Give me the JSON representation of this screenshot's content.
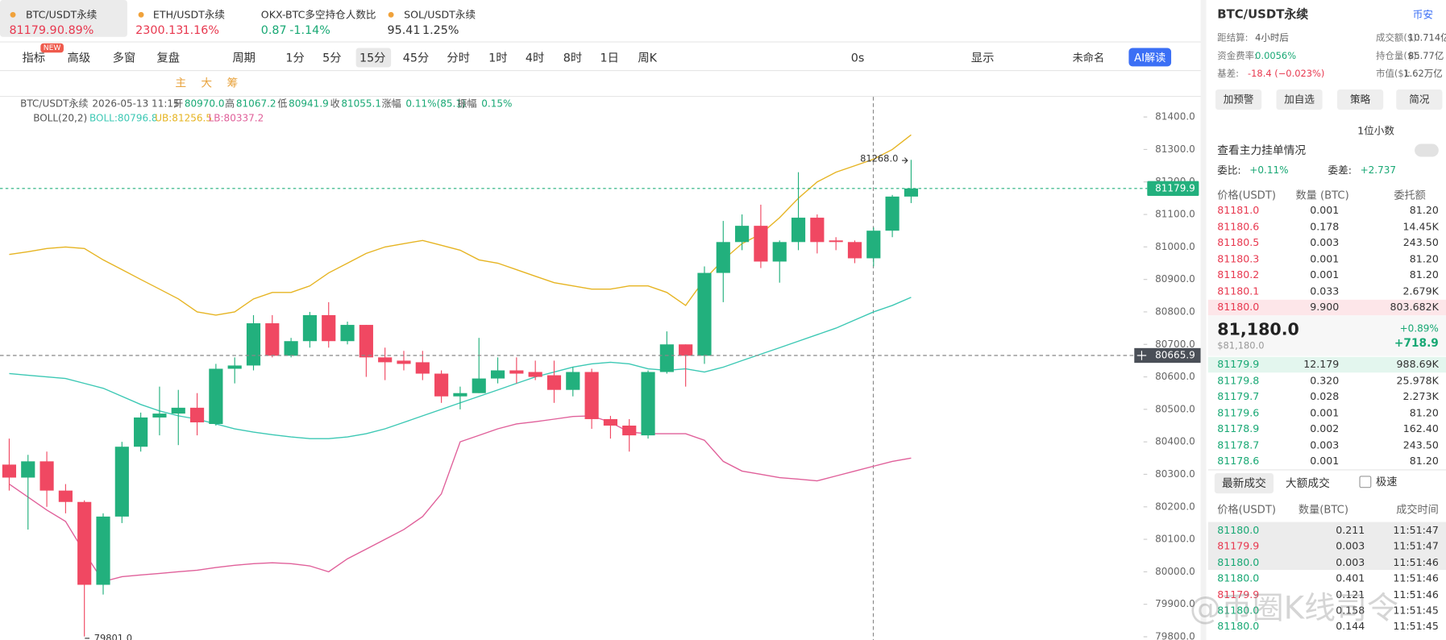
{
  "tabs": [
    {
      "name": "BTC/USDT永续",
      "price": "81179.9",
      "change": "0.89%",
      "color": "#e8384f"
    },
    {
      "name": "ETH/USDT永续",
      "price": "2300.13",
      "change": "1.16%",
      "color": "#e8384f"
    },
    {
      "name": "OKX-BTC多空持仓人数比",
      "price": "0.87",
      "change": "-1.14%",
      "color": "#18a874"
    },
    {
      "name": "SOL/USDT永续",
      "price": "95.41",
      "change": "1.25%",
      "color": "#333333"
    }
  ],
  "new_badge": "NEW",
  "toolbar": {
    "items": [
      "指标",
      "高级",
      "多窗",
      "复盘",
      "周期"
    ],
    "intervals": [
      "1分",
      "5分",
      "15分",
      "45分",
      "分时",
      "1时",
      "4时",
      "8时",
      "1日",
      "周K"
    ],
    "right": [
      "0s",
      "显示",
      "未命名",
      "AI解读"
    ]
  },
  "drawing_tools": [
    "主",
    "大",
    "筹"
  ],
  "chart_data": {
    "type": "candlestick",
    "info": [
      "BTC/USDT永续",
      "2026-05-13 11:15",
      "开",
      "80970.0",
      "高",
      "81067.2",
      "低",
      "80941.9",
      "收",
      "81055.1",
      "涨幅",
      "0.11%(85.1)",
      "振幅",
      "0.15%"
    ],
    "boll": [
      "BOLL(20,2)",
      "BOLL:80796.8",
      "UB:81256.5",
      "LB:80337.2"
    ],
    "up_color": "#22b07d",
    "down_color": "#f04862",
    "open": [
      80330,
      80290,
      80340,
      80250,
      80215,
      79960,
      80170,
      80385,
      80475,
      80487,
      80505,
      80455,
      80625,
      80635,
      80765,
      80665,
      80710,
      80790,
      80710,
      80760,
      80660,
      80650,
      80645,
      80610,
      80540,
      80550,
      80595,
      80620,
      80615,
      80605,
      80560,
      80615,
      80470,
      80450,
      80420,
      80615,
      80700,
      80665,
      80920,
      81015,
      81065,
      80955,
      81015,
      81090,
      81020,
      81015,
      80965,
      81050,
      81155
    ],
    "high": [
      80410,
      80360,
      80370,
      80270,
      80220,
      80180,
      80400,
      80490,
      80570,
      80560,
      80550,
      80640,
      80660,
      80790,
      80790,
      80720,
      80800,
      80830,
      80770,
      80760,
      80690,
      80680,
      80680,
      80620,
      80570,
      80720,
      80660,
      80660,
      80650,
      80650,
      80630,
      80625,
      80480,
      80470,
      80620,
      80740,
      80700,
      80940,
      81080,
      81100,
      81130,
      81020,
      81230,
      81100,
      81030,
      81020,
      81060,
      81160,
      81268
    ],
    "low": [
      80250,
      80130,
      80200,
      80180,
      79801,
      79930,
      80150,
      80370,
      80420,
      80390,
      80420,
      80450,
      80580,
      80620,
      80660,
      80660,
      80690,
      80690,
      80700,
      80600,
      80590,
      80620,
      80590,
      80520,
      80500,
      80550,
      80580,
      80580,
      80590,
      80520,
      80540,
      80440,
      80410,
      80370,
      80410,
      80610,
      80570,
      80640,
      80830,
      80990,
      80935,
      80890,
      80990,
      80980,
      80990,
      80950,
      80940,
      81030,
      81135
    ],
    "close": [
      80290,
      80340,
      80250,
      80215,
      79960,
      80170,
      80385,
      80475,
      80487,
      80505,
      80460,
      80625,
      80635,
      80765,
      80665,
      80710,
      80790,
      80710,
      80760,
      80660,
      80645,
      80640,
      80610,
      80540,
      80550,
      80595,
      80620,
      80610,
      80600,
      80560,
      80615,
      80470,
      80450,
      80420,
      80615,
      80700,
      80665,
      80920,
      81015,
      81065,
      80955,
      81015,
      81090,
      81015,
      81015,
      80965,
      81050,
      81155,
      81179.9
    ],
    "bands": {
      "upper": {
        "color": "#e6b422",
        "values": [
          80977,
          80985,
          80995,
          81000,
          80995,
          80960,
          80930,
          80900,
          80870,
          80840,
          80800,
          80790,
          80800,
          80840,
          80860,
          80860,
          80880,
          80920,
          80950,
          80980,
          81000,
          81010,
          81020,
          81005,
          80990,
          80960,
          80950,
          80930,
          80910,
          80890,
          80880,
          80870,
          80870,
          80880,
          80880,
          80860,
          80820,
          80900,
          80960,
          81010,
          81040,
          81090,
          81150,
          81200,
          81230,
          81250,
          81270,
          81300,
          81345
        ]
      },
      "middle": {
        "color": "#3cc8b4",
        "values": [
          80610,
          80605,
          80600,
          80595,
          80580,
          80565,
          80540,
          80515,
          80495,
          80480,
          80470,
          80455,
          80440,
          80430,
          80422,
          80415,
          80410,
          80410,
          80415,
          80425,
          80440,
          80460,
          80480,
          80500,
          80520,
          80540,
          80560,
          80580,
          80600,
          80615,
          80630,
          80640,
          80645,
          80640,
          80625,
          80620,
          80625,
          80615,
          80630,
          80650,
          80670,
          80690,
          80710,
          80730,
          80750,
          80775,
          80800,
          80820,
          80845
        ]
      },
      "lower": {
        "color": "#e0609a",
        "values": [
          80270,
          80230,
          80190,
          80155,
          80060,
          79970,
          79985,
          79990,
          79995,
          80000,
          80005,
          80013,
          80020,
          80025,
          80028,
          80025,
          80018,
          80000,
          80040,
          80070,
          80100,
          80130,
          80170,
          80240,
          80400,
          80420,
          80440,
          80455,
          80462,
          80470,
          80478,
          80480,
          80460,
          80430,
          80425,
          80425,
          80425,
          80405,
          80340,
          80310,
          80300,
          80290,
          80285,
          80280,
          80295,
          80310,
          80325,
          80340,
          80350
        ]
      }
    },
    "ylim": [
      79790,
      81462
    ],
    "yticks": [
      {
        "value": 81400,
        "label": "81400.0"
      },
      {
        "value": 81300,
        "label": "81300.0"
      },
      {
        "value": 81200,
        "label": "81200.0"
      },
      {
        "value": 81100,
        "label": "81100.0"
      },
      {
        "value": 81000,
        "label": "81000.0"
      },
      {
        "value": 80900,
        "label": "80900.0"
      },
      {
        "value": 80800,
        "label": "80800.0"
      },
      {
        "value": 80700,
        "label": "80700.0"
      },
      {
        "value": 80600,
        "label": "80600.0"
      },
      {
        "value": 80500,
        "label": "80500.0"
      },
      {
        "value": 80400,
        "label": "80400.0"
      },
      {
        "value": 80300,
        "label": "80300.0"
      },
      {
        "value": 80200,
        "label": "80200.0"
      },
      {
        "value": 80100,
        "label": "80100.0"
      },
      {
        "value": 80000,
        "label": "80000.0"
      },
      {
        "value": 79900,
        "label": "79900.0"
      },
      {
        "value": 79800,
        "label": "79800.0"
      }
    ],
    "grid": false,
    "last_price": 81179.9,
    "crosshair_price": 80665.9,
    "high_marker": {
      "value": 81268,
      "label": "81268.0"
    },
    "low_marker": {
      "value": 79801,
      "label": "79801.0"
    }
  },
  "side": {
    "symbol": "BTC/USDT永续",
    "exchange": "币安",
    "stats": [
      [
        "距结算:",
        "4小时后"
      ],
      [
        "成交额($):",
        "10.714亿"
      ],
      [
        "资金费率:",
        "0.0056%"
      ],
      [
        "持仓量($):",
        "85.77亿"
      ],
      [
        "基差:",
        "-18.4 (−0.023%)"
      ],
      [
        "市值($):",
        "1.62万亿"
      ]
    ],
    "buttons": [
      "加预警",
      "加自选",
      "策略",
      "简况"
    ],
    "precision": "1位小数",
    "main_orders": "查看主力挂单情况",
    "ratio": [
      "委比:",
      "+0.11%"
    ],
    "diff": [
      "委差:",
      "+2.737"
    ],
    "book_headers": [
      "价格(USDT)",
      "数量 (BTC)",
      "委托额"
    ],
    "asks": [
      [
        "81181.0",
        "0.001",
        "81.20"
      ],
      [
        "81180.6",
        "0.178",
        "14.45K"
      ],
      [
        "81180.5",
        "0.003",
        "243.50"
      ],
      [
        "81180.3",
        "0.001",
        "81.20"
      ],
      [
        "81180.2",
        "0.001",
        "81.20"
      ],
      [
        "81180.1",
        "0.033",
        "2.679K"
      ],
      [
        "81180.0",
        "9.900",
        "803.682K"
      ]
    ],
    "mid_price": "81,180.0",
    "mid_usd": "$81,180.0",
    "mid_change": "+0.89%",
    "mid_delta": "+718.9",
    "bids": [
      [
        "81179.9",
        "12.179",
        "988.69K"
      ],
      [
        "81179.8",
        "0.320",
        "25.978K"
      ],
      [
        "81179.7",
        "0.028",
        "2.273K"
      ],
      [
        "81179.6",
        "0.001",
        "81.20"
      ],
      [
        "81178.9",
        "0.002",
        "162.40"
      ],
      [
        "81178.7",
        "0.003",
        "243.50"
      ],
      [
        "81178.6",
        "0.001",
        "81.20"
      ]
    ],
    "trade_tabs": [
      "最新成交",
      "大额成交"
    ],
    "fast": "极速",
    "trade_headers": [
      "价格(USDT)",
      "数量(BTC)",
      "成交时间"
    ],
    "trades": [
      [
        "81180.0",
        "0.211",
        "11:51:47"
      ],
      [
        "81179.9",
        "0.003",
        "11:51:47"
      ],
      [
        "81180.0",
        "0.003",
        "11:51:46"
      ],
      [
        "81180.0",
        "0.401",
        "11:51:46"
      ],
      [
        "81179.9",
        "0.121",
        "11:51:46"
      ],
      [
        "81180.0",
        "0.158",
        "11:51:45"
      ],
      [
        "81180.0",
        "0.144",
        "11:51:45"
      ]
    ],
    "trade_colors": [
      "#18a874",
      "#e8384f",
      "#18a874",
      "#18a874",
      "#e8384f",
      "#18a874",
      "#18a874"
    ]
  },
  "watermark": "@币圈K线司令"
}
